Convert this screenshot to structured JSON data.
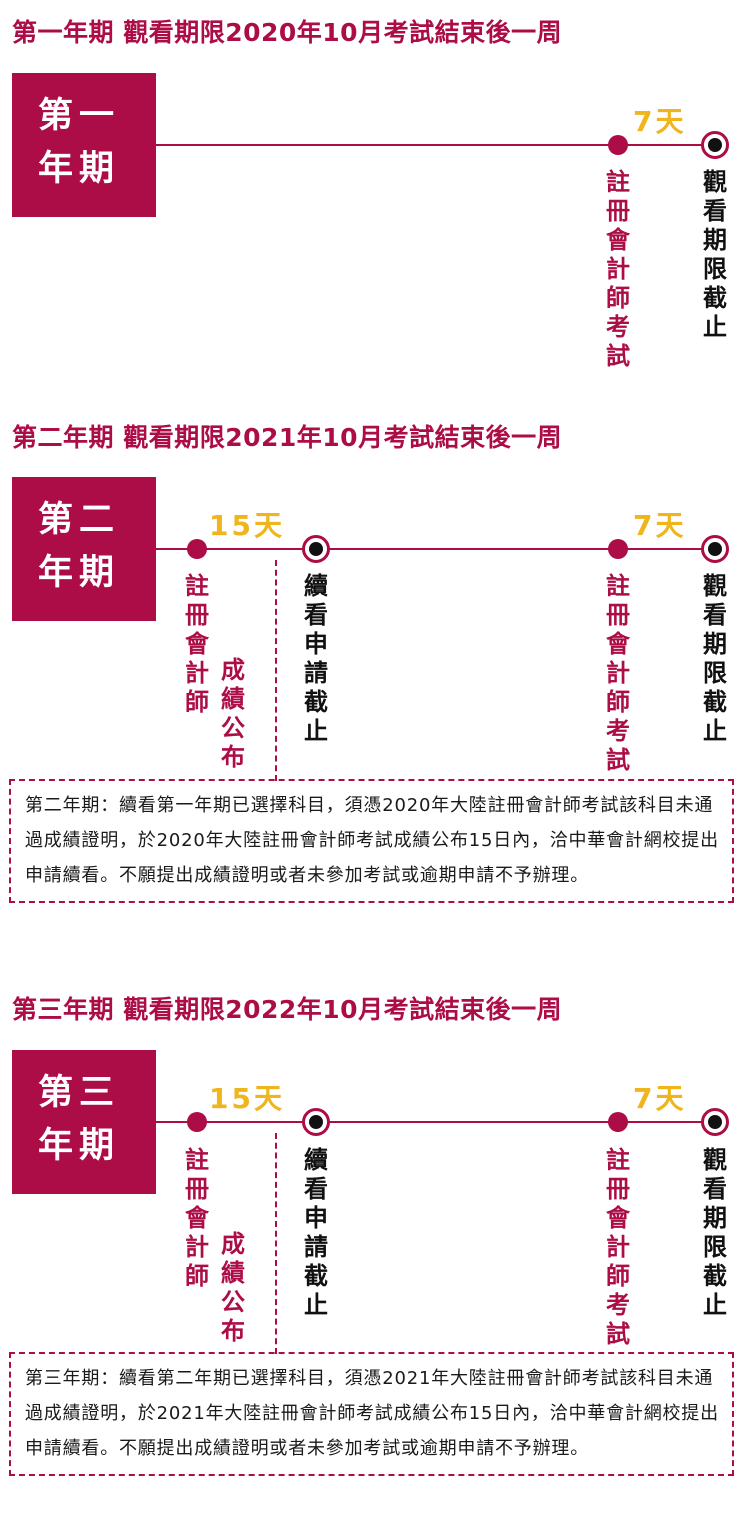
{
  "periods": [
    {
      "heading": "第一年期 觀看期限2020年10月考試結束後一周",
      "tag_line1": "第一",
      "tag_line2": "年期",
      "days_late": "7天",
      "label_exam": "註冊會計師考試",
      "label_deadline": "觀看期限截止"
    },
    {
      "heading": "第二年期 觀看期限2021年10月考試結束後一周",
      "tag_line1": "第二",
      "tag_line2": "年期",
      "days_early": "15天",
      "days_late": "7天",
      "label_cpa": "註冊會計師",
      "label_results": "成績公布",
      "label_renew": "續看申請截止",
      "label_exam": "註冊會計師考試",
      "label_deadline": "觀看期限截止",
      "note": "第二年期：續看第一年期已選擇科目，須憑2020年大陸註冊會計師考試該科目未通過成績證明，於2020年大陸註冊會計師考試成績公布15日內，洽中華會計網校提出申請續看。不願提出成績證明或者未參加考試或逾期申請不予辦理。"
    },
    {
      "heading": "第三年期 觀看期限2022年10月考試結束後一周",
      "tag_line1": "第三",
      "tag_line2": "年期",
      "days_early": "15天",
      "days_late": "7天",
      "label_cpa": "註冊會計師",
      "label_results": "成績公布",
      "label_renew": "續看申請截止",
      "label_exam": "註冊會計師考試",
      "label_deadline": "觀看期限截止",
      "note": "第三年期：續看第二年期已選擇科目，須憑2021年大陸註冊會計師考試該科目未通過成績證明，於2021年大陸註冊會計師考試成績公布15日內，洽中華會計網校提出申請續看。不願提出成績證明或者未參加考試或逾期申請不予辦理。"
    }
  ],
  "colors": {
    "brand": "#ad0d47",
    "accent": "#f0b51c",
    "marker": "#111111"
  }
}
